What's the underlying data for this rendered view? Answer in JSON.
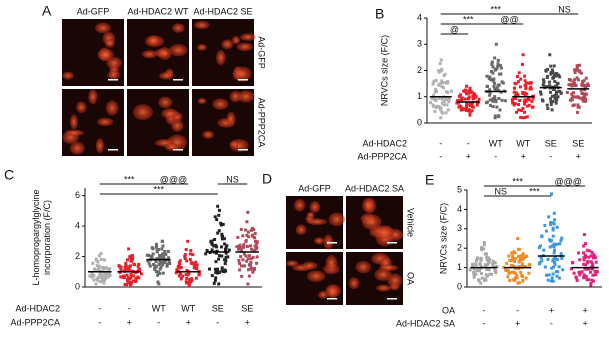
{
  "image_panels": [
    {
      "letter": "A",
      "columns": [
        "Ad-GFP",
        "Ad-HDAC2 WT",
        "Ad-HDAC2 SE"
      ],
      "rows": [
        "Ad-GFP",
        "Ad-PPP2CA"
      ]
    },
    {
      "letter": "D",
      "columns": [
        "Ad-GFP",
        "Ad-HDAC2 SA"
      ],
      "rows": [
        "Vehicle",
        "OA"
      ]
    }
  ],
  "chart_data": [
    {
      "type": "strip",
      "letter": "B",
      "ylabel": [
        "NRVCs size (F/C)"
      ],
      "ylim": [
        0,
        4
      ],
      "yticks": [
        0,
        1,
        2,
        3,
        4
      ],
      "colors": [
        "#b0b0b0",
        "#e8202a",
        "#6a6a6a",
        "#e8202a",
        "#4a4a4a",
        "#b04a5a"
      ],
      "values": [
        1.0,
        0.8,
        1.2,
        1.0,
        1.35,
        1.3
      ],
      "low": [
        0.2,
        0.3,
        0.2,
        0.2,
        0.5,
        0.4
      ],
      "high": [
        2.4,
        1.4,
        3.0,
        2.6,
        2.6,
        2.2
      ],
      "annotations": [
        "***",
        "NS",
        "***",
        "@@",
        "@"
      ],
      "condition_rows": [
        {
          "label": "Ad-HDAC2",
          "values": [
            "-",
            "-",
            "WT",
            "WT",
            "SE",
            "SE"
          ]
        },
        {
          "label": "Ad-PPP2CA",
          "values": [
            "-",
            "+",
            "-",
            "+",
            "-",
            "+"
          ]
        }
      ]
    },
    {
      "type": "strip",
      "letter": "C",
      "ylabel": [
        "L-homopropargylglycine",
        "incorporation (F/C)"
      ],
      "ylim": [
        0,
        6.5
      ],
      "yticks": [
        0,
        2,
        4,
        6
      ],
      "colors": [
        "#b0b0b0",
        "#e8202a",
        "#6a6a6a",
        "#e8202a",
        "#222222",
        "#b04a5a"
      ],
      "values": [
        1.0,
        1.0,
        1.8,
        1.0,
        2.3,
        2.3
      ],
      "low": [
        0.2,
        0.1,
        0.2,
        0.1,
        0.2,
        0.2
      ],
      "high": [
        2.2,
        2.5,
        3.0,
        3.0,
        5.3,
        4.9
      ],
      "annotations": [
        "***",
        "@@@",
        "NS",
        "***"
      ],
      "condition_rows": [
        {
          "label": "Ad-HDAC2",
          "values": [
            "-",
            "-",
            "WT",
            "WT",
            "SE",
            "SE"
          ]
        },
        {
          "label": "Ad-PPP2CA",
          "values": [
            "-",
            "+",
            "-",
            "+",
            "-",
            "+"
          ]
        }
      ]
    },
    {
      "type": "strip",
      "letter": "E",
      "ylabel": [
        "NRVCs size (F/C)"
      ],
      "ylim": [
        0,
        5
      ],
      "yticks": [
        0,
        1,
        2,
        3,
        4,
        5
      ],
      "colors": [
        "#a8a8a8",
        "#f08a24",
        "#3a98e0",
        "#e0207a"
      ],
      "values": [
        1.0,
        1.0,
        1.6,
        1.0
      ],
      "low": [
        0.2,
        0.2,
        0.3,
        0.1
      ],
      "high": [
        2.3,
        2.5,
        4.8,
        2.7
      ],
      "annotations": [
        "***",
        "@@@",
        "NS",
        "***"
      ],
      "condition_rows": [
        {
          "label": "OA",
          "values": [
            "-",
            "-",
            "+",
            "+"
          ]
        },
        {
          "label": "Ad-HDAC2 SA",
          "values": [
            "-",
            "+",
            "-",
            "+"
          ]
        }
      ]
    }
  ]
}
